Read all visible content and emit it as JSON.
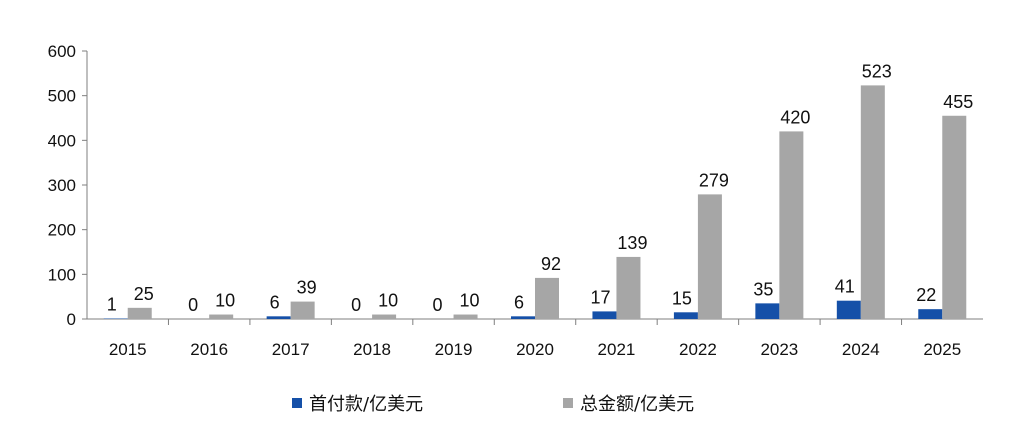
{
  "chart_data": {
    "type": "bar",
    "categories": [
      "2015",
      "2016",
      "2017",
      "2018",
      "2019",
      "2020",
      "2021",
      "2022",
      "2023",
      "2024",
      "2025"
    ],
    "series": [
      {
        "name": "首付款/亿美元",
        "color": "#1550a8",
        "values": [
          1,
          0,
          6,
          0,
          0,
          6,
          17,
          15,
          35,
          41,
          22
        ]
      },
      {
        "name": "总金额/亿美元",
        "color": "#a6a6a6",
        "values": [
          25,
          10,
          39,
          10,
          10,
          92,
          139,
          279,
          420,
          523,
          455
        ]
      }
    ],
    "yticks": [
      "0",
      "100",
      "200",
      "300",
      "400",
      "500",
      "600"
    ],
    "ylim": [
      0,
      600
    ],
    "grid": false,
    "legend_position": "bottom",
    "title": "",
    "xlabel": "",
    "ylabel": ""
  }
}
